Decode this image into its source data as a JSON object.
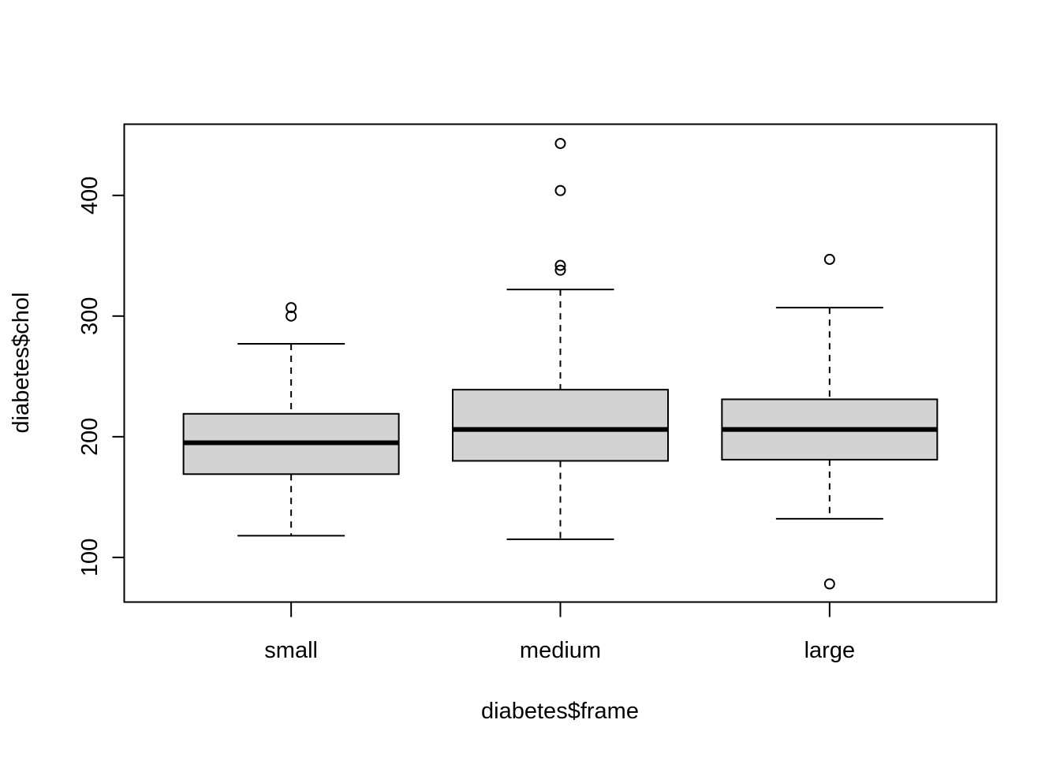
{
  "chart_data": {
    "type": "box",
    "xlabel": "diabetes$frame",
    "ylabel": "diabetes$chol",
    "ylim": [
      63,
      459
    ],
    "yticks": [
      100,
      200,
      300,
      400
    ],
    "categories": [
      "small",
      "medium",
      "large"
    ],
    "boxes": [
      {
        "category": "small",
        "whisker_low": 118,
        "q1": 169,
        "median": 195,
        "q3": 219,
        "whisker_high": 277,
        "outliers": [
          300,
          307
        ]
      },
      {
        "category": "medium",
        "whisker_low": 115,
        "q1": 180,
        "median": 206,
        "q3": 239,
        "whisker_high": 322,
        "outliers": [
          338,
          342,
          404,
          443
        ]
      },
      {
        "category": "large",
        "whisker_low": 132,
        "q1": 181,
        "median": 206,
        "q3": 231,
        "whisker_high": 307,
        "outliers": [
          78,
          347
        ]
      }
    ],
    "box_fill": "#d3d3d3",
    "line_color": "#000000",
    "grid": false
  }
}
